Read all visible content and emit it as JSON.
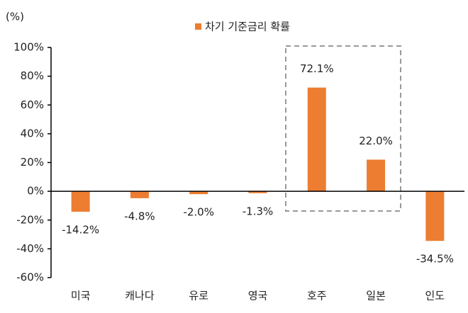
{
  "chart_data": {
    "type": "bar",
    "y_axis_title": "(%)",
    "categories": [
      "미국",
      "캐나다",
      "유로",
      "영국",
      "호주",
      "일본",
      "인도"
    ],
    "series": [
      {
        "name": "차기 기준금리 확률",
        "color": "#ed7d31",
        "values": [
          -14.2,
          -4.8,
          -2.0,
          -1.3,
          72.1,
          22.0,
          -34.5
        ],
        "value_labels": [
          "-14.2%",
          "-4.8%",
          "-2.0%",
          "-1.3%",
          "72.1%",
          "22.0%",
          "-34.5%"
        ]
      }
    ],
    "ylim": [
      -60,
      100
    ],
    "yticks": [
      {
        "value": -60,
        "label": "-60%"
      },
      {
        "value": -40,
        "label": "-40%"
      },
      {
        "value": -20,
        "label": "-20%"
      },
      {
        "value": 0,
        "label": "0%"
      },
      {
        "value": 20,
        "label": "20%"
      },
      {
        "value": 40,
        "label": "40%"
      },
      {
        "value": 60,
        "label": "60%"
      },
      {
        "value": 80,
        "label": "80%"
      },
      {
        "value": 100,
        "label": "100%"
      }
    ],
    "legend": "top"
  }
}
